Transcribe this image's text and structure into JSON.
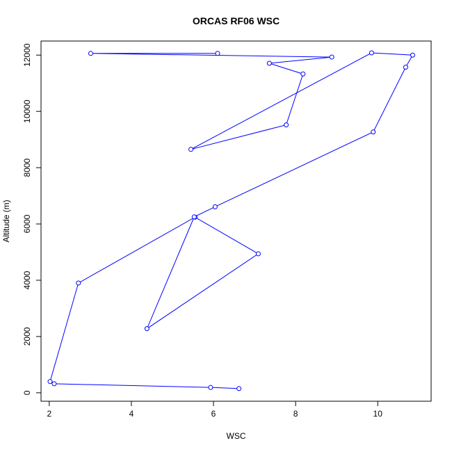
{
  "chart_data": {
    "type": "line",
    "title": "ORCAS RF06 WSC",
    "xlabel": "WSC",
    "ylabel": "Altitude (m)",
    "xlim": [
      1.8,
      11.3
    ],
    "ylim": [
      -300,
      12500
    ],
    "xticks": [
      2,
      4,
      6,
      8,
      10
    ],
    "yticks": [
      0,
      2000,
      4000,
      6000,
      8000,
      10000,
      12000
    ],
    "grid": false,
    "series": [
      {
        "color": "#0000ff",
        "marker": "open-circle",
        "x": [
          6.62,
          5.93,
          2.12,
          2.02,
          2.71,
          5.55,
          7.09,
          4.38,
          5.53,
          6.04,
          9.89,
          10.68,
          10.85,
          9.85,
          5.45,
          7.77,
          8.18,
          7.36,
          8.88,
          3.01,
          6.1
        ],
        "y": [
          150,
          190,
          320,
          400,
          3900,
          6240,
          4940,
          2280,
          6250,
          6610,
          9270,
          11570,
          12000,
          12080,
          8650,
          9520,
          11330,
          11710,
          11930,
          12060,
          12060
        ]
      }
    ]
  }
}
